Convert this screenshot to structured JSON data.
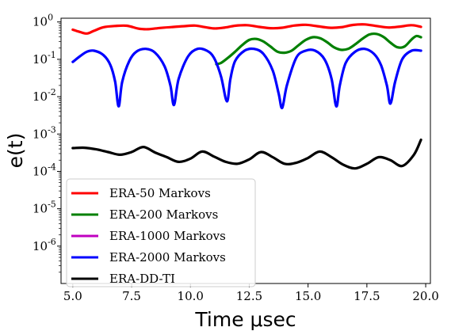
{
  "chart_data": {
    "type": "line",
    "xlabel": "Time μsec",
    "ylabel": "e(t)",
    "yscale": "log",
    "xlim": [
      4.5,
      20.2
    ],
    "ylim_exp": [
      -7,
      0.1
    ],
    "x_ticks": [
      5.0,
      7.5,
      10.0,
      12.5,
      15.0,
      17.5,
      20.0
    ],
    "x_tick_labels": [
      "5.0",
      "7.5",
      "10.0",
      "12.5",
      "15.0",
      "17.5",
      "20.0"
    ],
    "y_tick_exponents": [
      0,
      -1,
      -2,
      -3,
      -4,
      -5,
      -6
    ],
    "y_tick_labels": [
      {
        "base": "10",
        "exp": "0"
      },
      {
        "base": "10",
        "exp": "-1"
      },
      {
        "base": "10",
        "exp": "-2"
      },
      {
        "base": "10",
        "exp": "-3"
      },
      {
        "base": "10",
        "exp": "-4"
      },
      {
        "base": "10",
        "exp": "-5"
      },
      {
        "base": "10",
        "exp": "-6"
      }
    ],
    "legend_position": "lower-left",
    "grid": false,
    "series": [
      {
        "name": "ERA-50 Markovs",
        "color": "#ff0000",
        "x": [
          5.0,
          5.3,
          5.6,
          5.9,
          6.3,
          6.8,
          7.3,
          7.8,
          8.2,
          8.7,
          9.2,
          9.7,
          10.2,
          10.6,
          11.0,
          11.4,
          11.9,
          12.4,
          12.9,
          13.4,
          13.9,
          14.4,
          14.9,
          15.4,
          15.9,
          16.4,
          16.9,
          17.4,
          17.9,
          18.4,
          18.9,
          19.4,
          19.8
        ],
        "y": [
          0.62,
          0.54,
          0.49,
          0.58,
          0.72,
          0.78,
          0.79,
          0.66,
          0.64,
          0.69,
          0.73,
          0.77,
          0.8,
          0.73,
          0.67,
          0.7,
          0.79,
          0.82,
          0.74,
          0.68,
          0.7,
          0.8,
          0.84,
          0.77,
          0.7,
          0.72,
          0.83,
          0.86,
          0.78,
          0.71,
          0.75,
          0.82,
          0.74
        ]
      },
      {
        "name": "ERA-200 Markovs",
        "color": "#008000",
        "x": [
          11.1,
          11.3,
          11.6,
          11.9,
          12.2,
          12.5,
          12.8,
          13.1,
          13.4,
          13.7,
          14.0,
          14.3,
          14.6,
          14.9,
          15.2,
          15.5,
          15.8,
          16.1,
          16.4,
          16.7,
          17.0,
          17.3,
          17.6,
          17.9,
          18.2,
          18.5,
          18.8,
          19.1,
          19.4,
          19.6,
          19.8
        ],
        "y": [
          0.074,
          0.08,
          0.11,
          0.16,
          0.24,
          0.33,
          0.35,
          0.3,
          0.22,
          0.16,
          0.15,
          0.17,
          0.24,
          0.33,
          0.39,
          0.37,
          0.29,
          0.21,
          0.18,
          0.19,
          0.25,
          0.35,
          0.46,
          0.48,
          0.4,
          0.28,
          0.21,
          0.22,
          0.34,
          0.42,
          0.39
        ]
      },
      {
        "name": "ERA-1000 Markovs",
        "color": "#c000c0",
        "x": [],
        "y": []
      },
      {
        "name": "ERA-2000 Markovs",
        "color": "#0000ff",
        "x": [
          5.0,
          5.3,
          5.6,
          5.9,
          6.3,
          6.6,
          6.8,
          6.95,
          7.1,
          7.4,
          7.7,
          8.1,
          8.5,
          8.9,
          9.15,
          9.3,
          9.5,
          9.9,
          10.3,
          10.7,
          11.0,
          11.3,
          11.55,
          11.7,
          11.9,
          12.3,
          12.7,
          13.1,
          13.5,
          13.75,
          13.9,
          14.1,
          14.5,
          14.9,
          15.3,
          15.7,
          16.0,
          16.2,
          16.35,
          16.6,
          17.0,
          17.4,
          17.8,
          18.1,
          18.35,
          18.5,
          18.7,
          19.0,
          19.4,
          19.8
        ],
        "y": [
          0.085,
          0.12,
          0.16,
          0.17,
          0.13,
          0.07,
          0.025,
          0.0055,
          0.025,
          0.09,
          0.16,
          0.19,
          0.15,
          0.065,
          0.02,
          0.006,
          0.03,
          0.12,
          0.19,
          0.17,
          0.11,
          0.035,
          0.0075,
          0.03,
          0.09,
          0.17,
          0.19,
          0.14,
          0.05,
          0.012,
          0.005,
          0.02,
          0.11,
          0.17,
          0.17,
          0.1,
          0.03,
          0.0055,
          0.02,
          0.08,
          0.16,
          0.19,
          0.14,
          0.07,
          0.02,
          0.0065,
          0.025,
          0.1,
          0.17,
          0.17
        ]
      },
      {
        "name": "ERA-DD-TI",
        "color": "#000000",
        "x": [
          5.0,
          5.5,
          6.0,
          6.5,
          7.0,
          7.5,
          8.0,
          8.5,
          9.0,
          9.5,
          10.0,
          10.5,
          11.0,
          11.5,
          12.0,
          12.5,
          13.0,
          13.5,
          14.0,
          14.5,
          15.0,
          15.5,
          16.0,
          16.5,
          17.0,
          17.5,
          18.0,
          18.5,
          19.0,
          19.5,
          19.8
        ],
        "y": [
          0.00042,
          0.00043,
          0.00039,
          0.00033,
          0.00028,
          0.00033,
          0.00045,
          0.00032,
          0.00024,
          0.00018,
          0.00022,
          0.00034,
          0.00025,
          0.00018,
          0.00016,
          0.00021,
          0.00033,
          0.00024,
          0.00016,
          0.00017,
          0.00023,
          0.00034,
          0.00024,
          0.00015,
          0.00012,
          0.00016,
          0.00024,
          0.0002,
          0.00014,
          0.00028,
          0.0007
        ]
      }
    ]
  }
}
